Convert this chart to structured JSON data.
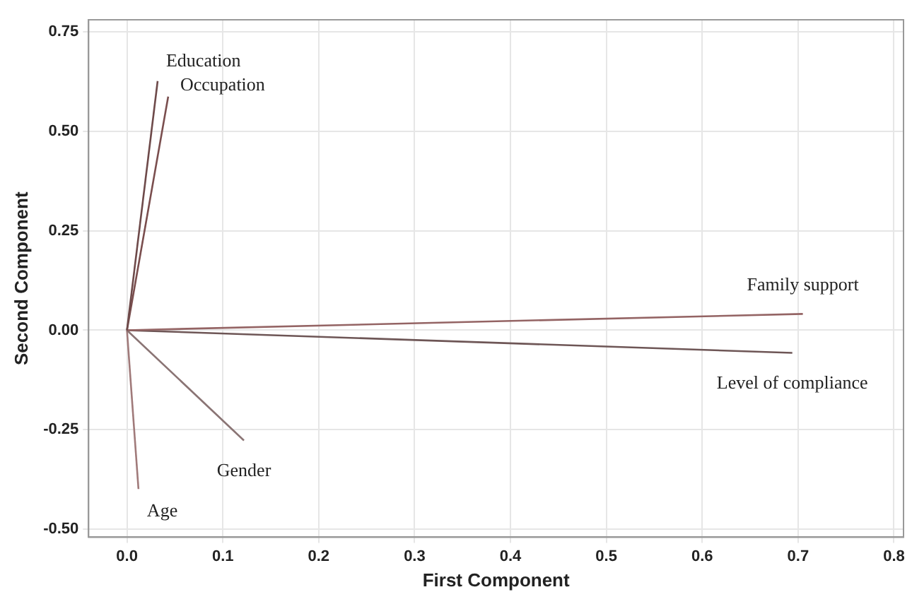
{
  "chart_data": {
    "type": "line",
    "xlabel": "First Component",
    "ylabel": "Second Component",
    "xlim": [
      -0.04,
      0.81
    ],
    "ylim": [
      -0.52,
      0.78
    ],
    "xticks": [
      {
        "value": 0,
        "label": "0.0"
      },
      0.1,
      0.2,
      0.3,
      0.4,
      0.5,
      0.6,
      0.7,
      0.8
    ],
    "yticks": [
      {
        "value": -0.5,
        "label": "-0.50"
      },
      {
        "value": -0.25,
        "label": "-0.25"
      },
      {
        "value": 0,
        "label": "0.00"
      },
      {
        "value": 0.25,
        "label": "0.25"
      },
      {
        "value": 0.5,
        "label": "0.50"
      },
      0.75
    ],
    "grid": true,
    "legend": false,
    "marker": "none",
    "line_style": "solid",
    "series": [
      {
        "name": "Education",
        "color": "#6e4a4a",
        "x": [
          0,
          0.032
        ],
        "values": [
          0,
          0.626
        ]
      },
      {
        "name": "Occupation",
        "color": "#7a4e4e",
        "x": [
          0,
          0.043
        ],
        "values": [
          0,
          0.587
        ]
      },
      {
        "name": "Family support",
        "color": "#946464",
        "x": [
          0,
          0.705
        ],
        "values": [
          0,
          0.041
        ]
      },
      {
        "name": "Level of compliance",
        "color": "#6e5656",
        "x": [
          0,
          0.694
        ],
        "values": [
          0,
          -0.057
        ]
      },
      {
        "name": "Gender",
        "color": "#8a7474",
        "x": [
          0,
          0.122
        ],
        "values": [
          0,
          -0.277
        ]
      },
      {
        "name": "Age",
        "color": "#a07a7a",
        "x": [
          0,
          0.012
        ],
        "values": [
          0,
          -0.399
        ]
      }
    ]
  }
}
